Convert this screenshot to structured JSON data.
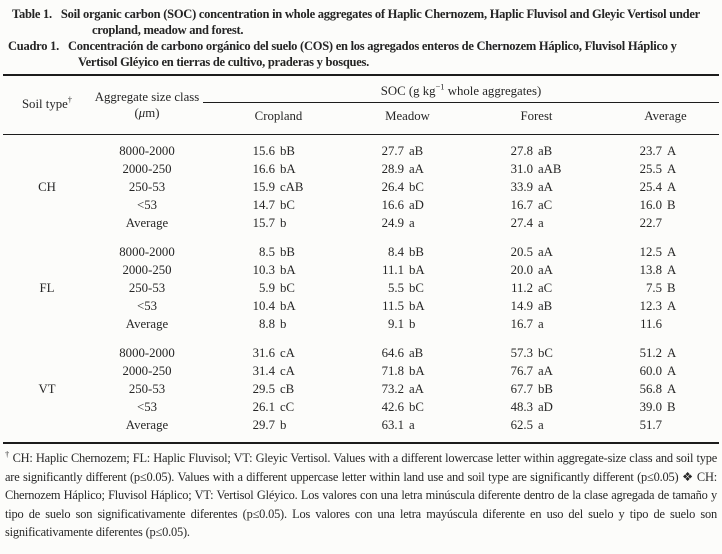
{
  "captions": {
    "en": {
      "label": "Table 1.",
      "text": "Soil organic carbon (SOC) concentration in whole aggregates of Haplic Chernozem, Haplic Fluvisol and Gleyic Vertisol under cropland, meadow and forest."
    },
    "es": {
      "label": "Cuadro 1.",
      "text": "Concentración de carbono orgánico del suelo (COS) en los agregados enteros de Chernozem Háplico, Fluvisol Háplico y Vertisol Gléyico en tierras de cultivo, praderas y bosques."
    }
  },
  "table": {
    "header": {
      "soil_type": {
        "label": "Soil type",
        "marker": "†"
      },
      "aggregate": {
        "label": "Aggregate size class",
        "unit_pre": "(",
        "unit_mu": "μ",
        "unit_post": "m)"
      },
      "soc": {
        "pre": "SOC (g kg",
        "sup": "−1",
        "post": " whole aggregates)"
      },
      "columns": [
        "Cropland",
        "Meadow",
        "Forest",
        "Average"
      ]
    },
    "groups": [
      {
        "soil": "CH",
        "rows": [
          {
            "size": "8000-2000",
            "cells": [
              [
                "15.6",
                "bB"
              ],
              [
                "27.7",
                "aB"
              ],
              [
                "27.8",
                "aB"
              ],
              [
                "23.7",
                "A"
              ]
            ]
          },
          {
            "size": "2000-250",
            "cells": [
              [
                "16.6",
                "bA"
              ],
              [
                "28.9",
                "aA"
              ],
              [
                "31.0",
                "aAB"
              ],
              [
                "25.5",
                "A"
              ]
            ]
          },
          {
            "size": "250-53",
            "cells": [
              [
                "15.9",
                "cAB"
              ],
              [
                "26.4",
                "bC"
              ],
              [
                "33.9",
                "aA"
              ],
              [
                "25.4",
                "A"
              ]
            ]
          },
          {
            "size": "<53",
            "cells": [
              [
                "14.7",
                "bC"
              ],
              [
                "16.6",
                "aD"
              ],
              [
                "16.7",
                "aC"
              ],
              [
                "16.0",
                "B"
              ]
            ]
          },
          {
            "size": "Average",
            "cells": [
              [
                "15.7",
                "b"
              ],
              [
                "24.9",
                "a"
              ],
              [
                "27.4",
                "a"
              ],
              [
                "22.7",
                ""
              ]
            ]
          }
        ]
      },
      {
        "soil": "FL",
        "rows": [
          {
            "size": "8000-2000",
            "cells": [
              [
                "8.5",
                "bB"
              ],
              [
                "8.4",
                "bB"
              ],
              [
                "20.5",
                "aA"
              ],
              [
                "12.5",
                "A"
              ]
            ]
          },
          {
            "size": "2000-250",
            "cells": [
              [
                "10.3",
                "bA"
              ],
              [
                "11.1",
                "bA"
              ],
              [
                "20.0",
                "aA"
              ],
              [
                "13.8",
                "A"
              ]
            ]
          },
          {
            "size": "250-53",
            "cells": [
              [
                "5.9",
                "bC"
              ],
              [
                "5.5",
                "bC"
              ],
              [
                "11.2",
                "aC"
              ],
              [
                "7.5",
                "B"
              ]
            ]
          },
          {
            "size": "<53",
            "cells": [
              [
                "10.4",
                "bA"
              ],
              [
                "11.5",
                "bA"
              ],
              [
                "14.9",
                "aB"
              ],
              [
                "12.3",
                "A"
              ]
            ]
          },
          {
            "size": "Average",
            "cells": [
              [
                "8.8",
                "b"
              ],
              [
                "9.1",
                "b"
              ],
              [
                "16.7",
                "a"
              ],
              [
                "11.6",
                ""
              ]
            ]
          }
        ]
      },
      {
        "soil": "VT",
        "rows": [
          {
            "size": "8000-2000",
            "cells": [
              [
                "31.6",
                "cA"
              ],
              [
                "64.6",
                "aB"
              ],
              [
                "57.3",
                "bC"
              ],
              [
                "51.2",
                "A"
              ]
            ]
          },
          {
            "size": "2000-250",
            "cells": [
              [
                "31.4",
                "cA"
              ],
              [
                "71.8",
                "bA"
              ],
              [
                "76.7",
                "aA"
              ],
              [
                "60.0",
                "A"
              ]
            ]
          },
          {
            "size": "250-53",
            "cells": [
              [
                "29.5",
                "cB"
              ],
              [
                "73.2",
                "aA"
              ],
              [
                "67.7",
                "bB"
              ],
              [
                "56.8",
                "A"
              ]
            ]
          },
          {
            "size": "<53",
            "cells": [
              [
                "26.1",
                "cC"
              ],
              [
                "42.6",
                "bC"
              ],
              [
                "48.3",
                "aD"
              ],
              [
                "39.0",
                "B"
              ]
            ]
          },
          {
            "size": "Average",
            "cells": [
              [
                "29.7",
                "b"
              ],
              [
                "63.1",
                "a"
              ],
              [
                "62.5",
                "a"
              ],
              [
                "51.7",
                ""
              ]
            ]
          }
        ]
      }
    ]
  },
  "footnote": {
    "marker": "†",
    "text": " CH: Haplic Chernozem; FL: Haplic Fluvisol; VT: Gleyic Vertisol. Values with a different lowercase letter within aggregate-size class and soil type are significantly different (p≤0.05). Values with a different uppercase letter within land use and soil type are significantly different (p≤0.05) ❖ CH: Chernozem Háplico; Fluvisol Háplico; VT: Vertisol Gléyico. Los valores con una letra minúscula diferente dentro de la clase agregada de tamaño y tipo de suelo son significativamente diferentes (p≤0.05). Los valores con una letra mayúscula diferente en uso del suelo y tipo de suelo son significativamente diferentes (p≤0.05)."
  },
  "colors": {
    "background": "#fcfcfa",
    "text": "#262626",
    "rule": "#1c1c1c"
  }
}
